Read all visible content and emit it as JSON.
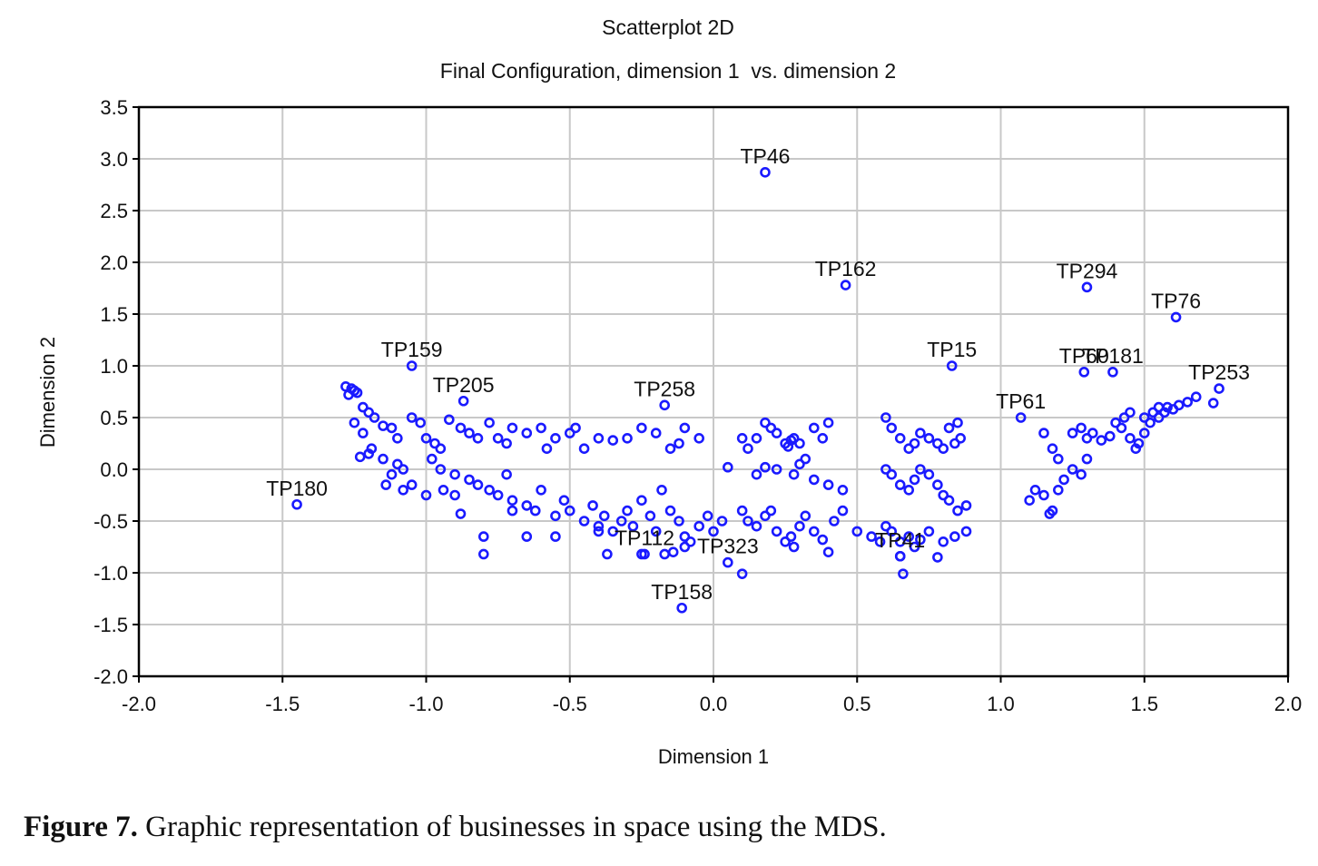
{
  "chart_data": {
    "type": "scatter",
    "title": "Scatterplot 2D",
    "subtitle": "Final Configuration, dimension 1  vs. dimension 2",
    "xlabel": "Dimension 1",
    "ylabel": "Dimension 2",
    "xlim": [
      -2.0,
      2.0
    ],
    "ylim": [
      -2.0,
      3.5
    ],
    "xticks": [
      "-2.0",
      "-1.5",
      "-1.0",
      "-0.5",
      "0.0",
      "0.5",
      "1.0",
      "1.5",
      "2.0"
    ],
    "yticks": [
      "3.5",
      "3.0",
      "2.5",
      "2.0",
      "1.5",
      "1.0",
      "0.5",
      "0.0",
      "-0.5",
      "-1.0",
      "-1.5",
      "-2.0"
    ],
    "grid": true,
    "marker_color": "#1a1aff",
    "labeled_points": [
      {
        "label": "TP46",
        "x": 0.18,
        "y": 2.87
      },
      {
        "label": "TP162",
        "x": 0.46,
        "y": 1.78
      },
      {
        "label": "TP294",
        "x": 1.3,
        "y": 1.76
      },
      {
        "label": "TP76",
        "x": 1.61,
        "y": 1.47
      },
      {
        "label": "TP159",
        "x": -1.05,
        "y": 1.0
      },
      {
        "label": "TP15",
        "x": 0.83,
        "y": 1.0
      },
      {
        "label": "TP60",
        "x": 1.29,
        "y": 0.94
      },
      {
        "label": "TP181",
        "x": 1.39,
        "y": 0.94
      },
      {
        "label": "TP253",
        "x": 1.76,
        "y": 0.78
      },
      {
        "label": "TP258",
        "x": -0.17,
        "y": 0.62
      },
      {
        "label": "TP205",
        "x": -0.87,
        "y": 0.66
      },
      {
        "label": "TP61",
        "x": 1.07,
        "y": 0.5
      },
      {
        "label": "TP180",
        "x": -1.45,
        "y": -0.34
      },
      {
        "label": "TP112",
        "x": -0.24,
        "y": -0.82
      },
      {
        "label": "TP158",
        "x": -0.11,
        "y": -1.34
      },
      {
        "label": "TP323",
        "x": 0.05,
        "y": -0.9
      },
      {
        "label": "TP41",
        "x": 0.65,
        "y": -0.84
      }
    ],
    "points": [
      [
        -1.28,
        0.8
      ],
      [
        -1.26,
        0.78
      ],
      [
        -1.25,
        0.76
      ],
      [
        -1.24,
        0.74
      ],
      [
        -1.27,
        0.72
      ],
      [
        -1.22,
        0.6
      ],
      [
        -1.2,
        0.55
      ],
      [
        -1.18,
        0.5
      ],
      [
        -1.25,
        0.45
      ],
      [
        -1.15,
        0.42
      ],
      [
        -1.12,
        0.4
      ],
      [
        -1.1,
        0.3
      ],
      [
        -1.22,
        0.35
      ],
      [
        -1.19,
        0.2
      ],
      [
        -1.15,
        0.1
      ],
      [
        -1.1,
        0.05
      ],
      [
        -1.08,
        0.0
      ],
      [
        -1.12,
        -0.05
      ],
      [
        -1.2,
        0.15
      ],
      [
        -1.23,
        0.12
      ],
      [
        -1.05,
        0.5
      ],
      [
        -1.02,
        0.45
      ],
      [
        -1.0,
        0.3
      ],
      [
        -0.97,
        0.25
      ],
      [
        -0.95,
        0.2
      ],
      [
        -0.98,
        0.1
      ],
      [
        -0.95,
        0.0
      ],
      [
        -0.9,
        -0.05
      ],
      [
        -1.05,
        -0.15
      ],
      [
        -1.08,
        -0.2
      ],
      [
        -1.14,
        -0.15
      ],
      [
        -1.0,
        -0.25
      ],
      [
        -0.94,
        -0.2
      ],
      [
        -0.9,
        -0.25
      ],
      [
        -0.92,
        0.48
      ],
      [
        -0.88,
        0.4
      ],
      [
        -0.85,
        0.35
      ],
      [
        -0.82,
        0.3
      ],
      [
        -0.78,
        0.45
      ],
      [
        -0.75,
        0.3
      ],
      [
        -0.72,
        0.25
      ],
      [
        -0.7,
        0.4
      ],
      [
        -0.65,
        0.35
      ],
      [
        -0.6,
        0.4
      ],
      [
        -0.58,
        0.2
      ],
      [
        -0.55,
        0.3
      ],
      [
        -0.5,
        0.35
      ],
      [
        -0.48,
        0.4
      ],
      [
        -0.45,
        0.2
      ],
      [
        -0.4,
        0.3
      ],
      [
        -0.35,
        0.28
      ],
      [
        -0.3,
        0.3
      ],
      [
        -0.25,
        0.4
      ],
      [
        -0.2,
        0.35
      ],
      [
        -0.15,
        0.2
      ],
      [
        -0.12,
        0.25
      ],
      [
        -0.1,
        0.4
      ],
      [
        -0.05,
        0.3
      ],
      [
        -0.85,
        -0.1
      ],
      [
        -0.82,
        -0.15
      ],
      [
        -0.78,
        -0.2
      ],
      [
        -0.75,
        -0.25
      ],
      [
        -0.72,
        -0.05
      ],
      [
        -0.7,
        -0.3
      ],
      [
        -0.65,
        -0.35
      ],
      [
        -0.62,
        -0.4
      ],
      [
        -0.6,
        -0.2
      ],
      [
        -0.55,
        -0.45
      ],
      [
        -0.52,
        -0.3
      ],
      [
        -0.5,
        -0.4
      ],
      [
        -0.45,
        -0.5
      ],
      [
        -0.42,
        -0.35
      ],
      [
        -0.4,
        -0.55
      ],
      [
        -0.38,
        -0.45
      ],
      [
        -0.35,
        -0.6
      ],
      [
        -0.32,
        -0.5
      ],
      [
        -0.3,
        -0.4
      ],
      [
        -0.28,
        -0.55
      ],
      [
        -0.25,
        -0.3
      ],
      [
        -0.22,
        -0.45
      ],
      [
        -0.2,
        -0.6
      ],
      [
        -0.18,
        -0.2
      ],
      [
        -0.15,
        -0.4
      ],
      [
        -0.12,
        -0.5
      ],
      [
        -0.1,
        -0.65
      ],
      [
        -0.08,
        -0.7
      ],
      [
        -0.05,
        -0.55
      ],
      [
        -0.02,
        -0.45
      ],
      [
        0.0,
        -0.6
      ],
      [
        0.03,
        -0.5
      ],
      [
        -0.8,
        -0.65
      ],
      [
        -0.8,
        -0.82
      ],
      [
        -0.65,
        -0.65
      ],
      [
        -0.55,
        -0.65
      ],
      [
        -0.4,
        -0.6
      ],
      [
        -0.37,
        -0.82
      ],
      [
        -0.25,
        -0.82
      ],
      [
        -0.17,
        -0.82
      ],
      [
        -0.14,
        -0.8
      ],
      [
        -0.1,
        -0.75
      ],
      [
        -0.88,
        -0.43
      ],
      [
        -0.7,
        -0.4
      ],
      [
        0.1,
        -0.4
      ],
      [
        0.12,
        -0.5
      ],
      [
        0.15,
        -0.55
      ],
      [
        0.18,
        -0.45
      ],
      [
        0.2,
        -0.4
      ],
      [
        0.22,
        -0.6
      ],
      [
        0.25,
        -0.7
      ],
      [
        0.28,
        -0.75
      ],
      [
        0.3,
        -0.55
      ],
      [
        0.32,
        -0.45
      ],
      [
        0.35,
        -0.6
      ],
      [
        0.38,
        -0.68
      ],
      [
        0.4,
        -0.8
      ],
      [
        0.42,
        -0.5
      ],
      [
        0.45,
        -0.4
      ],
      [
        0.1,
        -1.01
      ],
      [
        0.27,
        -0.65
      ],
      [
        0.25,
        0.25
      ],
      [
        0.27,
        0.28
      ],
      [
        0.28,
        0.3
      ],
      [
        0.3,
        0.25
      ],
      [
        0.26,
        0.22
      ],
      [
        0.22,
        0.35
      ],
      [
        0.2,
        0.4
      ],
      [
        0.18,
        0.45
      ],
      [
        0.15,
        0.3
      ],
      [
        0.12,
        0.2
      ],
      [
        0.1,
        0.3
      ],
      [
        0.05,
        0.02
      ],
      [
        0.35,
        0.4
      ],
      [
        0.4,
        0.45
      ],
      [
        0.38,
        0.3
      ],
      [
        0.32,
        0.1
      ],
      [
        0.3,
        0.05
      ],
      [
        0.28,
        -0.05
      ],
      [
        0.35,
        -0.1
      ],
      [
        0.4,
        -0.15
      ],
      [
        0.45,
        -0.2
      ],
      [
        0.22,
        0.0
      ],
      [
        0.18,
        0.02
      ],
      [
        0.15,
        -0.05
      ],
      [
        0.5,
        -0.6
      ],
      [
        0.55,
        -0.65
      ],
      [
        0.58,
        -0.7
      ],
      [
        0.6,
        -0.55
      ],
      [
        0.62,
        -0.6
      ],
      [
        0.65,
        -0.7
      ],
      [
        0.68,
        -0.65
      ],
      [
        0.7,
        -0.75
      ],
      [
        0.72,
        -0.68
      ],
      [
        0.75,
        -0.6
      ],
      [
        0.78,
        -0.85
      ],
      [
        0.8,
        -0.7
      ],
      [
        0.66,
        -1.01
      ],
      [
        0.65,
        -0.84
      ],
      [
        0.6,
        0.5
      ],
      [
        0.62,
        0.4
      ],
      [
        0.65,
        0.3
      ],
      [
        0.68,
        0.2
      ],
      [
        0.7,
        0.25
      ],
      [
        0.72,
        0.35
      ],
      [
        0.75,
        0.3
      ],
      [
        0.78,
        0.25
      ],
      [
        0.8,
        0.2
      ],
      [
        0.82,
        0.4
      ],
      [
        0.85,
        0.45
      ],
      [
        0.86,
        0.3
      ],
      [
        0.84,
        0.25
      ],
      [
        0.6,
        0.0
      ],
      [
        0.62,
        -0.05
      ],
      [
        0.65,
        -0.15
      ],
      [
        0.68,
        -0.2
      ],
      [
        0.7,
        -0.1
      ],
      [
        0.72,
        0.0
      ],
      [
        0.75,
        -0.05
      ],
      [
        0.78,
        -0.15
      ],
      [
        0.8,
        -0.25
      ],
      [
        0.82,
        -0.3
      ],
      [
        0.85,
        -0.4
      ],
      [
        0.88,
        -0.35
      ],
      [
        0.88,
        -0.6
      ],
      [
        0.84,
        -0.65
      ],
      [
        1.1,
        -0.3
      ],
      [
        1.12,
        -0.2
      ],
      [
        1.15,
        -0.25
      ],
      [
        1.18,
        -0.4
      ],
      [
        1.2,
        -0.2
      ],
      [
        1.22,
        -0.1
      ],
      [
        1.25,
        0.0
      ],
      [
        1.28,
        -0.05
      ],
      [
        1.3,
        0.1
      ],
      [
        1.17,
        -0.43
      ],
      [
        1.15,
        0.35
      ],
      [
        1.18,
        0.2
      ],
      [
        1.2,
        0.1
      ],
      [
        1.25,
        0.35
      ],
      [
        1.28,
        0.4
      ],
      [
        1.3,
        0.3
      ],
      [
        1.32,
        0.35
      ],
      [
        1.35,
        0.28
      ],
      [
        1.38,
        0.32
      ],
      [
        1.4,
        0.45
      ],
      [
        1.42,
        0.4
      ],
      [
        1.45,
        0.3
      ],
      [
        1.47,
        0.2
      ],
      [
        1.48,
        0.25
      ],
      [
        1.5,
        0.35
      ],
      [
        1.52,
        0.45
      ],
      [
        1.55,
        0.5
      ],
      [
        1.57,
        0.55
      ],
      [
        1.58,
        0.6
      ],
      [
        1.6,
        0.58
      ],
      [
        1.62,
        0.62
      ],
      [
        1.65,
        0.65
      ],
      [
        1.68,
        0.7
      ],
      [
        1.55,
        0.6
      ],
      [
        1.53,
        0.55
      ],
      [
        1.5,
        0.5
      ],
      [
        1.74,
        0.64
      ],
      [
        1.45,
        0.55
      ],
      [
        1.43,
        0.5
      ]
    ]
  },
  "caption": {
    "label": "Figure 7.",
    "text": " Graphic representation of businesses in space using the MDS."
  }
}
